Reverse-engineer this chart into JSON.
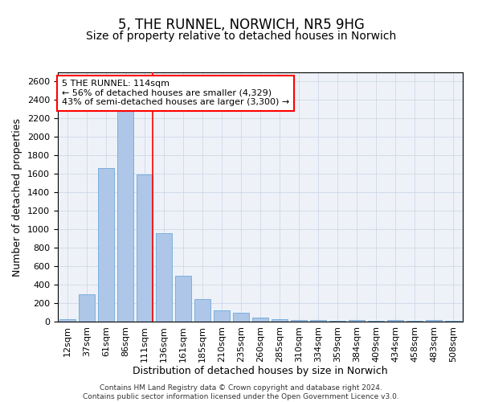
{
  "title": "5, THE RUNNEL, NORWICH, NR5 9HG",
  "subtitle": "Size of property relative to detached houses in Norwich",
  "xlabel": "Distribution of detached houses by size in Norwich",
  "ylabel": "Number of detached properties",
  "categories": [
    "12sqm",
    "37sqm",
    "61sqm",
    "86sqm",
    "111sqm",
    "136sqm",
    "161sqm",
    "185sqm",
    "210sqm",
    "235sqm",
    "260sqm",
    "285sqm",
    "310sqm",
    "334sqm",
    "359sqm",
    "384sqm",
    "409sqm",
    "434sqm",
    "458sqm",
    "483sqm",
    "508sqm"
  ],
  "values": [
    25,
    300,
    1660,
    2290,
    1590,
    960,
    500,
    245,
    120,
    100,
    45,
    30,
    20,
    15,
    10,
    20,
    10,
    20,
    5,
    20,
    5
  ],
  "bar_color": "#aec6e8",
  "bar_edge_color": "#5a9fd4",
  "vline_index": 4,
  "annotation_text_line1": "5 THE RUNNEL: 114sqm",
  "annotation_text_line2": "← 56% of detached houses are smaller (4,329)",
  "annotation_text_line3": "43% of semi-detached houses are larger (3,300) →",
  "annotation_box_color": "white",
  "annotation_box_edge_color": "red",
  "vline_color": "red",
  "ylim": [
    0,
    2700
  ],
  "yticks": [
    0,
    200,
    400,
    600,
    800,
    1000,
    1200,
    1400,
    1600,
    1800,
    2000,
    2200,
    2400,
    2600
  ],
  "grid_color": "#d0d8e8",
  "background_color": "#eef2f8",
  "footer_line1": "Contains HM Land Registry data © Crown copyright and database right 2024.",
  "footer_line2": "Contains public sector information licensed under the Open Government Licence v3.0.",
  "title_fontsize": 12,
  "subtitle_fontsize": 10,
  "xlabel_fontsize": 9,
  "ylabel_fontsize": 9,
  "tick_fontsize": 8,
  "annotation_fontsize": 8,
  "footer_fontsize": 6.5
}
